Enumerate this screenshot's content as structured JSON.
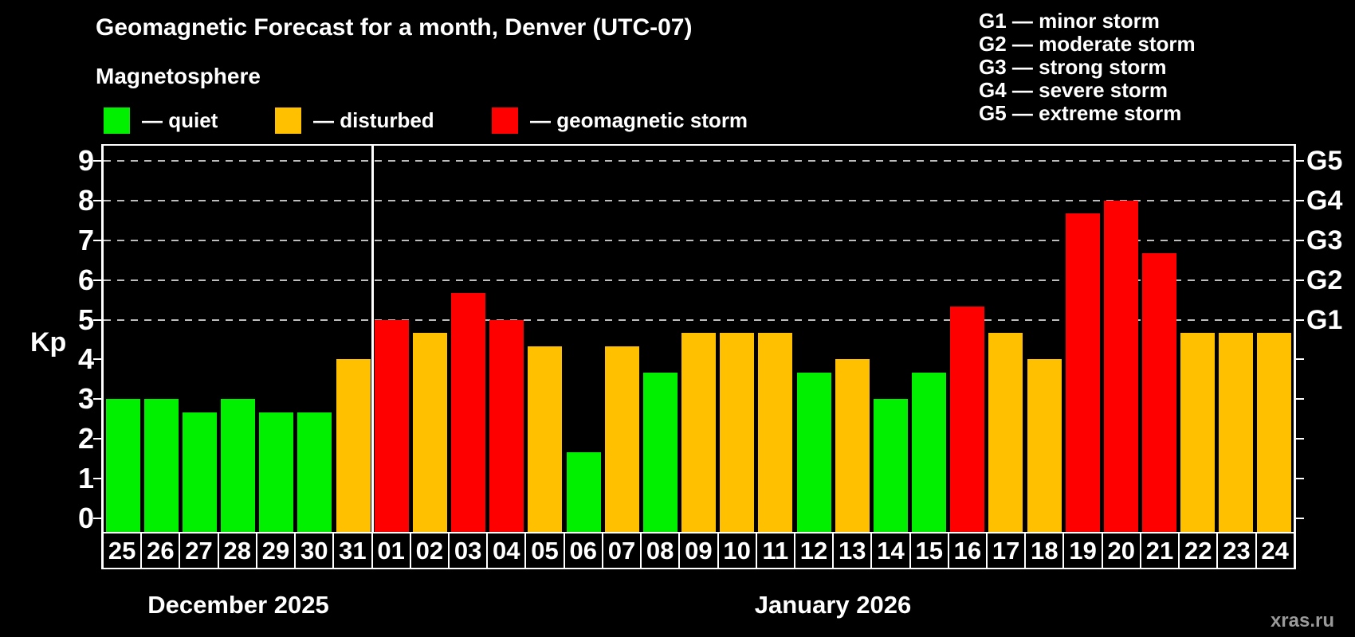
{
  "header": {
    "title": "Geomagnetic Forecast for a month, Denver (UTC-07)",
    "subtitle": "Magnetosphere"
  },
  "legend": {
    "items": [
      {
        "key": "quiet",
        "label": "— quiet",
        "color": "#00f000"
      },
      {
        "key": "disturbed",
        "label": "— disturbed",
        "color": "#ffc000"
      },
      {
        "key": "storm",
        "label": "— geomagnetic storm",
        "color": "#ff0000"
      }
    ]
  },
  "storm_scale_legend": {
    "lines": [
      "G1 — minor storm",
      "G2 — moderate storm",
      "G3 — strong storm",
      "G4 — severe storm",
      "G5 — extreme storm"
    ]
  },
  "chart_data": {
    "type": "bar",
    "title": "Geomagnetic Forecast for a month, Denver (UTC-07)",
    "ylabel": "Kp",
    "ylim": [
      0,
      9
    ],
    "yticks": [
      0,
      1,
      2,
      3,
      4,
      5,
      6,
      7,
      8,
      9
    ],
    "gridlines_at": [
      5,
      6,
      7,
      8,
      9
    ],
    "grid": "dashed, only at storm levels G1–G5",
    "legend_position": "top",
    "right_axis_labels": [
      {
        "value": 5,
        "label": "G1"
      },
      {
        "value": 6,
        "label": "G2"
      },
      {
        "value": 7,
        "label": "G3"
      },
      {
        "value": 8,
        "label": "G4"
      },
      {
        "value": 9,
        "label": "G5"
      }
    ],
    "categories": [
      "25",
      "26",
      "27",
      "28",
      "29",
      "30",
      "31",
      "01",
      "02",
      "03",
      "04",
      "05",
      "06",
      "07",
      "08",
      "09",
      "10",
      "11",
      "12",
      "13",
      "14",
      "15",
      "16",
      "17",
      "18",
      "19",
      "20",
      "21",
      "22",
      "23",
      "24"
    ],
    "series": [
      {
        "name": "Kp forecast",
        "values": [
          3,
          3,
          2.67,
          3,
          2.67,
          2.67,
          4,
          5,
          4.67,
          5.67,
          5,
          4.33,
          1.67,
          4.33,
          3.67,
          4.67,
          4.67,
          4.67,
          3.67,
          4,
          3,
          3.67,
          5.33,
          4.67,
          4,
          7.67,
          8,
          6.67,
          4.67,
          4.67,
          4.67
        ],
        "statuses": [
          "quiet",
          "quiet",
          "quiet",
          "quiet",
          "quiet",
          "quiet",
          "disturbed",
          "storm",
          "disturbed",
          "storm",
          "storm",
          "disturbed",
          "quiet",
          "disturbed",
          "quiet",
          "disturbed",
          "disturbed",
          "disturbed",
          "quiet",
          "disturbed",
          "quiet",
          "quiet",
          "storm",
          "disturbed",
          "disturbed",
          "storm",
          "storm",
          "storm",
          "disturbed",
          "disturbed",
          "disturbed"
        ]
      }
    ],
    "months": [
      {
        "label": "December 2025",
        "days": 7
      },
      {
        "label": "January 2026",
        "days": 24
      }
    ]
  },
  "watermark": "xras.ru"
}
